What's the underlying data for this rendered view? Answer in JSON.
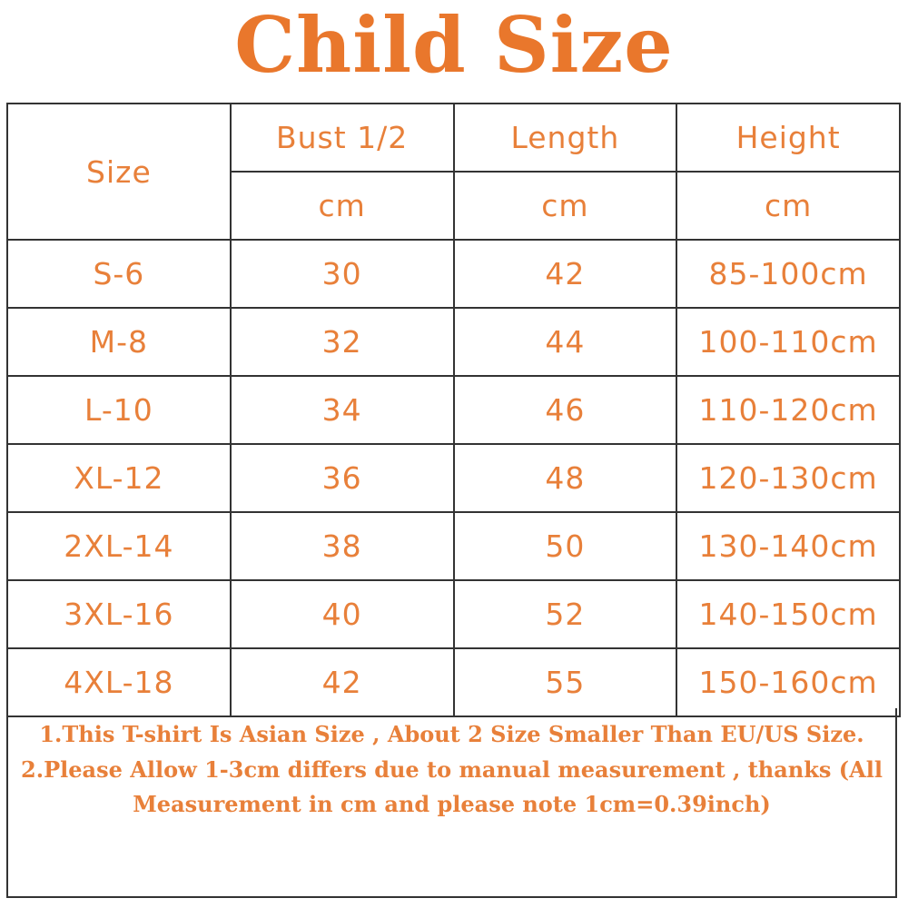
{
  "title": "Child Size",
  "colors": {
    "accent": "#e8803a",
    "border": "#333333"
  },
  "table": {
    "size_header": "Size",
    "columns": [
      {
        "label": "Bust 1/2",
        "unit": "cm"
      },
      {
        "label": "Length",
        "unit": "cm"
      },
      {
        "label": "Height",
        "unit": "cm"
      }
    ],
    "rows": [
      [
        "S-6",
        "30",
        "42",
        "85-100cm"
      ],
      [
        "M-8",
        "32",
        "44",
        "100-110cm"
      ],
      [
        "L-10",
        "34",
        "46",
        "110-120cm"
      ],
      [
        "XL-12",
        "36",
        "48",
        "120-130cm"
      ],
      [
        "2XL-14",
        "38",
        "50",
        "130-140cm"
      ],
      [
        "3XL-16",
        "40",
        "52",
        "140-150cm"
      ],
      [
        "4XL-18",
        "42",
        "55",
        "150-160cm"
      ]
    ]
  },
  "notes": [
    "1.This T-shirt Is Asian Size , About 2 Size Smaller Than EU/US Size.",
    "2.Please Allow 1-3cm differs due to manual measurement , thanks (All Measurement in cm and please note 1cm=0.39inch)"
  ]
}
